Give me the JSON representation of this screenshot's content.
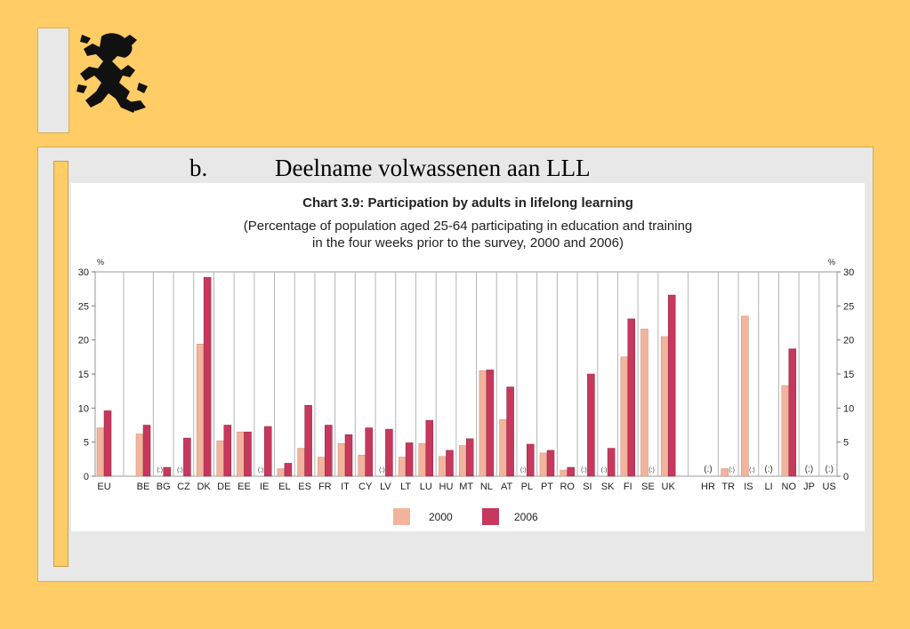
{
  "slide": {
    "heading_number": "b.",
    "heading_text": "Deelname volwassenen aan LLL"
  },
  "logo": {
    "icon": "flemish-lion-icon"
  },
  "colors": {
    "s2000": "#F2B49C",
    "s2006": "#C7385D",
    "background": "#FFCC66",
    "panel": "#E8E8E8"
  },
  "chart_data": {
    "type": "bar",
    "title": "Chart 3.9: Participation by adults in lifelong learning",
    "subtitle_line1": "(Percentage of population aged 25-64 participating in education and training",
    "subtitle_line2": "in the four weeks prior to the survey, 2000 and 2006)",
    "ylabel_left": "%",
    "ylabel_right": "%",
    "ylim": [
      0,
      30
    ],
    "yticks": [
      0,
      5,
      10,
      15,
      20,
      25,
      30
    ],
    "grid": "vertical",
    "legend_position": "bottom",
    "missing_label": "(:)",
    "categories": [
      "EU",
      "BE",
      "BG",
      "CZ",
      "DK",
      "DE",
      "EE",
      "IE",
      "EL",
      "ES",
      "FR",
      "IT",
      "CY",
      "LV",
      "LT",
      "LU",
      "HU",
      "MT",
      "NL",
      "AT",
      "PL",
      "PT",
      "RO",
      "SI",
      "SK",
      "FI",
      "SE",
      "UK",
      "HR",
      "TR",
      "IS",
      "LI",
      "NO",
      "JP",
      "US"
    ],
    "series": [
      {
        "name": "2000",
        "values": [
          7.1,
          6.2,
          null,
          null,
          19.4,
          5.2,
          6.5,
          null,
          1.1,
          4.1,
          2.8,
          4.8,
          3.1,
          null,
          2.8,
          4.8,
          2.9,
          4.5,
          15.5,
          8.3,
          null,
          3.4,
          0.9,
          null,
          null,
          17.5,
          21.6,
          20.5,
          null,
          1.1,
          23.5,
          null,
          13.3,
          null,
          null
        ]
      },
      {
        "name": "2006",
        "values": [
          9.6,
          7.5,
          1.3,
          5.6,
          29.2,
          7.5,
          6.5,
          7.3,
          1.9,
          10.4,
          7.5,
          6.1,
          7.1,
          6.9,
          4.9,
          8.2,
          3.8,
          5.5,
          15.6,
          13.1,
          4.7,
          3.8,
          1.3,
          15.0,
          4.1,
          23.1,
          null,
          26.6,
          null,
          null,
          null,
          null,
          18.7,
          null,
          null
        ]
      }
    ],
    "missing_markers": [
      {
        "category": "BG",
        "series": "2000"
      },
      {
        "category": "CZ",
        "series": "2000"
      },
      {
        "category": "IE",
        "series": "2000"
      },
      {
        "category": "LV",
        "series": "2000"
      },
      {
        "category": "PL",
        "series": "2000"
      },
      {
        "category": "SI",
        "series": "2000"
      },
      {
        "category": "SK",
        "series": "2000"
      },
      {
        "category": "SE",
        "series": "2006"
      },
      {
        "category": "HR",
        "series": "both"
      },
      {
        "category": "TR",
        "series": "2006"
      },
      {
        "category": "IS",
        "series": "2006"
      },
      {
        "category": "LI",
        "series": "both"
      },
      {
        "category": "JP",
        "series": "both"
      },
      {
        "category": "US",
        "series": "both"
      }
    ]
  }
}
